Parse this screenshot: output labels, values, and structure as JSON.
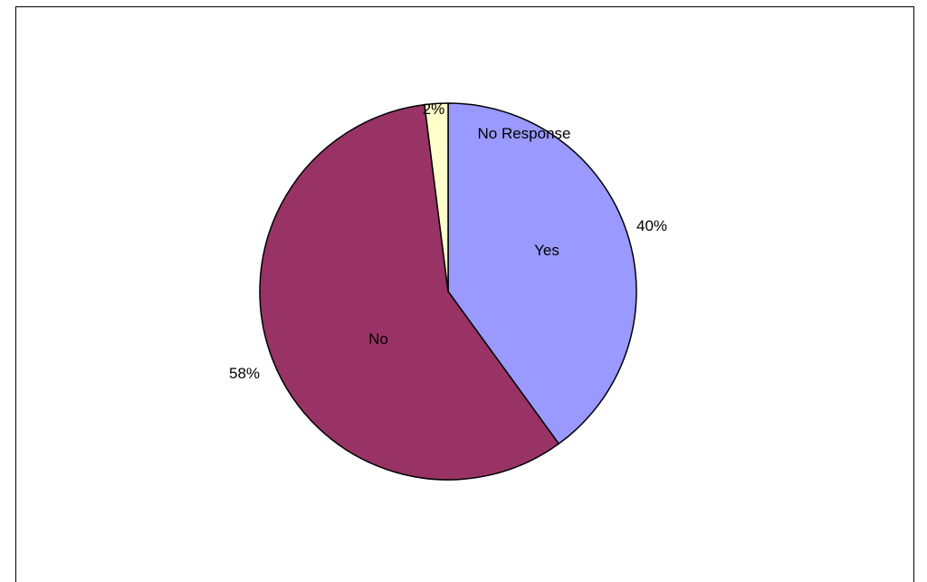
{
  "chart_data": {
    "type": "pie",
    "title": "",
    "slices": [
      {
        "name": "Yes",
        "value": 40,
        "pct_label": "40%",
        "color": "#9999FF"
      },
      {
        "name": "No",
        "value": 58,
        "pct_label": "58%",
        "color": "#993366"
      },
      {
        "name": "No Response",
        "value": 2,
        "pct_label": "2%",
        "color": "#FFFFCC"
      }
    ],
    "start": "12 o'clock",
    "direction": "clockwise",
    "legend": "none",
    "labels": "category names inside slices, percentages outside"
  }
}
